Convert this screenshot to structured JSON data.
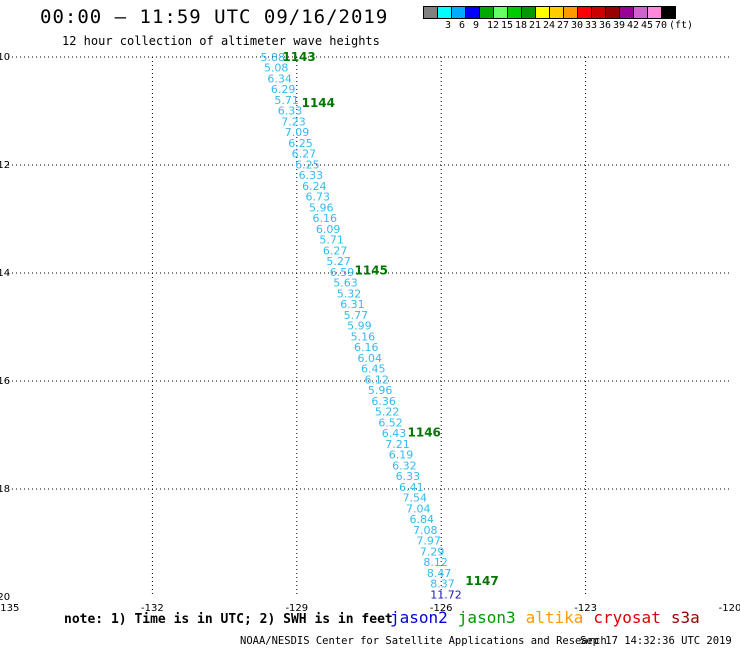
{
  "header": {
    "title": "00:00 – 11:59 UTC 09/16/2019",
    "subtitle": "12 hour collection of altimeter wave heights"
  },
  "legend": {
    "swatches": [
      {
        "color": "#808080",
        "label": ""
      },
      {
        "color": "#00ffff",
        "label": "3"
      },
      {
        "color": "#00aaff",
        "label": "6"
      },
      {
        "color": "#0000ff",
        "label": "9"
      },
      {
        "color": "#00aa00",
        "label": "12"
      },
      {
        "color": "#66ff66",
        "label": "15"
      },
      {
        "color": "#00cc00",
        "label": "18"
      },
      {
        "color": "#009900",
        "label": "21"
      },
      {
        "color": "#ffff00",
        "label": "24"
      },
      {
        "color": "#ffcc00",
        "label": "27"
      },
      {
        "color": "#ff9900",
        "label": "30"
      },
      {
        "color": "#ff0000",
        "label": "33"
      },
      {
        "color": "#cc0000",
        "label": "36"
      },
      {
        "color": "#990000",
        "label": "39"
      },
      {
        "color": "#990099",
        "label": "42"
      },
      {
        "color": "#cc66cc",
        "label": "45"
      },
      {
        "color": "#ff88dd",
        "label": "70"
      },
      {
        "color": "#000000",
        "label": "(ft)"
      }
    ]
  },
  "chart_data": {
    "type": "scatter",
    "x_ticks": [
      "-135",
      "-132",
      "-129",
      "-126",
      "-123",
      "-120"
    ],
    "y_ticks": [
      "-10",
      "-12",
      "-14",
      "-16",
      "-18",
      "-20"
    ],
    "xlim": [
      -135,
      -120
    ],
    "ylim": [
      -20,
      -10
    ],
    "grid": true,
    "track": {
      "start": {
        "lon": -129.5,
        "lat": -10.0
      },
      "end": {
        "lon": -125.9,
        "lat": -19.95
      },
      "color": "#33bbee",
      "values": [
        "5.88",
        "5.08",
        "6.34",
        "6.29",
        "5.71",
        "6.33",
        "7.23",
        "7.09",
        "6.25",
        "6.27",
        "6.25",
        "6.33",
        "6.24",
        "6.73",
        "5.96",
        "6.16",
        "6.09",
        "5.71",
        "6.27",
        "5.27",
        "6.59",
        "5.63",
        "5.32",
        "6.31",
        "5.77",
        "5.99",
        "5.16",
        "6.16",
        "6.04",
        "6.45",
        "6.12",
        "5.96",
        "6.36",
        "5.22",
        "6.52",
        "6.43",
        "7.21",
        "6.19",
        "6.32",
        "6.33",
        "6.41",
        "7.54",
        "7.04",
        "6.84",
        "7.08",
        "7.97",
        "7.29",
        "8.12",
        "8.47",
        "8.37",
        "11.72"
      ],
      "last_value_color": "#1a1ab0"
    },
    "time_labels": [
      {
        "text": "1143",
        "lon": -129.3,
        "lat": -10.0
      },
      {
        "text": "1144",
        "lon": -128.9,
        "lat": -10.85
      },
      {
        "text": "1145",
        "lon": -127.8,
        "lat": -13.95
      },
      {
        "text": "1146",
        "lon": -126.7,
        "lat": -16.95
      },
      {
        "text": "1147",
        "lon": -125.5,
        "lat": -19.7
      }
    ],
    "time_label_color": "#007700"
  },
  "footer": {
    "note": "note: 1) Time is in UTC; 2) SWH is in feet",
    "missions": [
      {
        "name": "jason2",
        "color": "#0000dd"
      },
      {
        "name": "jason3",
        "color": "#009900"
      },
      {
        "name": "altika",
        "color": "#ff9900"
      },
      {
        "name": "cryosat",
        "color": "#dd0000"
      },
      {
        "name": "s3a",
        "color": "#990000"
      }
    ],
    "credit": "NOAA/NESDIS Center for Satellite Applications and Research",
    "timestamp": "Sep 17 14:32:36 UTC 2019"
  }
}
